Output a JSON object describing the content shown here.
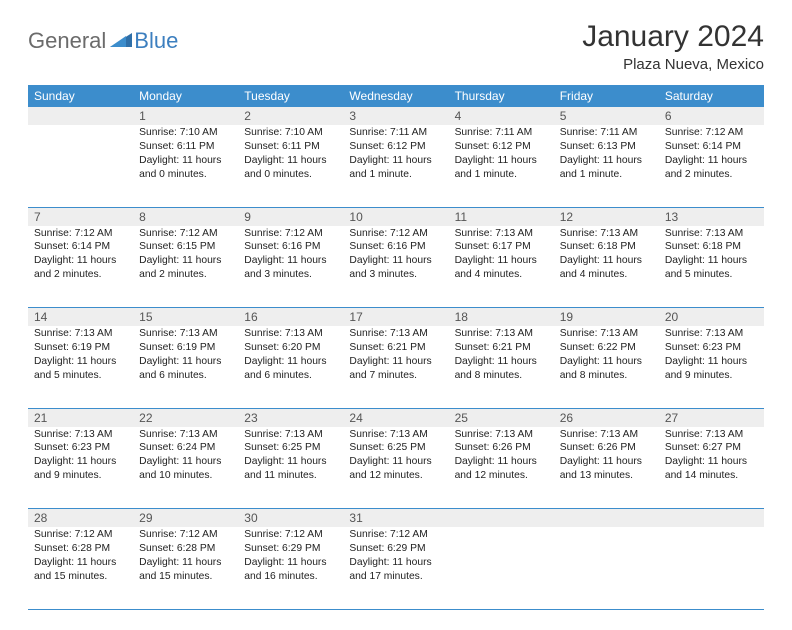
{
  "logo": {
    "general": "General",
    "blue": "Blue"
  },
  "title": "January 2024",
  "location": "Plaza Nueva, Mexico",
  "header_bg": "#3c8dcc",
  "header_fg": "#ffffff",
  "daynum_bg": "#eeeeee",
  "border_color": "#3c8dcc",
  "weekdays": [
    "Sunday",
    "Monday",
    "Tuesday",
    "Wednesday",
    "Thursday",
    "Friday",
    "Saturday"
  ],
  "weeks": [
    [
      {
        "num": "",
        "sunrise": "",
        "sunset": "",
        "daylight": ""
      },
      {
        "num": "1",
        "sunrise": "Sunrise: 7:10 AM",
        "sunset": "Sunset: 6:11 PM",
        "daylight": "Daylight: 11 hours and 0 minutes."
      },
      {
        "num": "2",
        "sunrise": "Sunrise: 7:10 AM",
        "sunset": "Sunset: 6:11 PM",
        "daylight": "Daylight: 11 hours and 0 minutes."
      },
      {
        "num": "3",
        "sunrise": "Sunrise: 7:11 AM",
        "sunset": "Sunset: 6:12 PM",
        "daylight": "Daylight: 11 hours and 1 minute."
      },
      {
        "num": "4",
        "sunrise": "Sunrise: 7:11 AM",
        "sunset": "Sunset: 6:12 PM",
        "daylight": "Daylight: 11 hours and 1 minute."
      },
      {
        "num": "5",
        "sunrise": "Sunrise: 7:11 AM",
        "sunset": "Sunset: 6:13 PM",
        "daylight": "Daylight: 11 hours and 1 minute."
      },
      {
        "num": "6",
        "sunrise": "Sunrise: 7:12 AM",
        "sunset": "Sunset: 6:14 PM",
        "daylight": "Daylight: 11 hours and 2 minutes."
      }
    ],
    [
      {
        "num": "7",
        "sunrise": "Sunrise: 7:12 AM",
        "sunset": "Sunset: 6:14 PM",
        "daylight": "Daylight: 11 hours and 2 minutes."
      },
      {
        "num": "8",
        "sunrise": "Sunrise: 7:12 AM",
        "sunset": "Sunset: 6:15 PM",
        "daylight": "Daylight: 11 hours and 2 minutes."
      },
      {
        "num": "9",
        "sunrise": "Sunrise: 7:12 AM",
        "sunset": "Sunset: 6:16 PM",
        "daylight": "Daylight: 11 hours and 3 minutes."
      },
      {
        "num": "10",
        "sunrise": "Sunrise: 7:12 AM",
        "sunset": "Sunset: 6:16 PM",
        "daylight": "Daylight: 11 hours and 3 minutes."
      },
      {
        "num": "11",
        "sunrise": "Sunrise: 7:13 AM",
        "sunset": "Sunset: 6:17 PM",
        "daylight": "Daylight: 11 hours and 4 minutes."
      },
      {
        "num": "12",
        "sunrise": "Sunrise: 7:13 AM",
        "sunset": "Sunset: 6:18 PM",
        "daylight": "Daylight: 11 hours and 4 minutes."
      },
      {
        "num": "13",
        "sunrise": "Sunrise: 7:13 AM",
        "sunset": "Sunset: 6:18 PM",
        "daylight": "Daylight: 11 hours and 5 minutes."
      }
    ],
    [
      {
        "num": "14",
        "sunrise": "Sunrise: 7:13 AM",
        "sunset": "Sunset: 6:19 PM",
        "daylight": "Daylight: 11 hours and 5 minutes."
      },
      {
        "num": "15",
        "sunrise": "Sunrise: 7:13 AM",
        "sunset": "Sunset: 6:19 PM",
        "daylight": "Daylight: 11 hours and 6 minutes."
      },
      {
        "num": "16",
        "sunrise": "Sunrise: 7:13 AM",
        "sunset": "Sunset: 6:20 PM",
        "daylight": "Daylight: 11 hours and 6 minutes."
      },
      {
        "num": "17",
        "sunrise": "Sunrise: 7:13 AM",
        "sunset": "Sunset: 6:21 PM",
        "daylight": "Daylight: 11 hours and 7 minutes."
      },
      {
        "num": "18",
        "sunrise": "Sunrise: 7:13 AM",
        "sunset": "Sunset: 6:21 PM",
        "daylight": "Daylight: 11 hours and 8 minutes."
      },
      {
        "num": "19",
        "sunrise": "Sunrise: 7:13 AM",
        "sunset": "Sunset: 6:22 PM",
        "daylight": "Daylight: 11 hours and 8 minutes."
      },
      {
        "num": "20",
        "sunrise": "Sunrise: 7:13 AM",
        "sunset": "Sunset: 6:23 PM",
        "daylight": "Daylight: 11 hours and 9 minutes."
      }
    ],
    [
      {
        "num": "21",
        "sunrise": "Sunrise: 7:13 AM",
        "sunset": "Sunset: 6:23 PM",
        "daylight": "Daylight: 11 hours and 9 minutes."
      },
      {
        "num": "22",
        "sunrise": "Sunrise: 7:13 AM",
        "sunset": "Sunset: 6:24 PM",
        "daylight": "Daylight: 11 hours and 10 minutes."
      },
      {
        "num": "23",
        "sunrise": "Sunrise: 7:13 AM",
        "sunset": "Sunset: 6:25 PM",
        "daylight": "Daylight: 11 hours and 11 minutes."
      },
      {
        "num": "24",
        "sunrise": "Sunrise: 7:13 AM",
        "sunset": "Sunset: 6:25 PM",
        "daylight": "Daylight: 11 hours and 12 minutes."
      },
      {
        "num": "25",
        "sunrise": "Sunrise: 7:13 AM",
        "sunset": "Sunset: 6:26 PM",
        "daylight": "Daylight: 11 hours and 12 minutes."
      },
      {
        "num": "26",
        "sunrise": "Sunrise: 7:13 AM",
        "sunset": "Sunset: 6:26 PM",
        "daylight": "Daylight: 11 hours and 13 minutes."
      },
      {
        "num": "27",
        "sunrise": "Sunrise: 7:13 AM",
        "sunset": "Sunset: 6:27 PM",
        "daylight": "Daylight: 11 hours and 14 minutes."
      }
    ],
    [
      {
        "num": "28",
        "sunrise": "Sunrise: 7:12 AM",
        "sunset": "Sunset: 6:28 PM",
        "daylight": "Daylight: 11 hours and 15 minutes."
      },
      {
        "num": "29",
        "sunrise": "Sunrise: 7:12 AM",
        "sunset": "Sunset: 6:28 PM",
        "daylight": "Daylight: 11 hours and 15 minutes."
      },
      {
        "num": "30",
        "sunrise": "Sunrise: 7:12 AM",
        "sunset": "Sunset: 6:29 PM",
        "daylight": "Daylight: 11 hours and 16 minutes."
      },
      {
        "num": "31",
        "sunrise": "Sunrise: 7:12 AM",
        "sunset": "Sunset: 6:29 PM",
        "daylight": "Daylight: 11 hours and 17 minutes."
      },
      {
        "num": "",
        "sunrise": "",
        "sunset": "",
        "daylight": ""
      },
      {
        "num": "",
        "sunrise": "",
        "sunset": "",
        "daylight": ""
      },
      {
        "num": "",
        "sunrise": "",
        "sunset": "",
        "daylight": ""
      }
    ]
  ]
}
